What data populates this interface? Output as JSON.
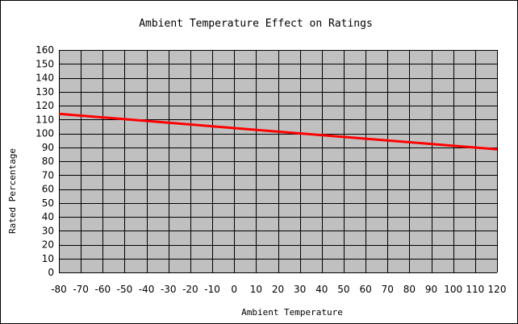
{
  "chart_data": {
    "type": "line",
    "title": "Ambient Temperature Effect on Ratings",
    "xlabel": "Ambient Temperature",
    "ylabel": "Rated Percentage",
    "xlim": [
      -80,
      120
    ],
    "ylim": [
      0,
      160
    ],
    "x_ticks": [
      -80,
      -70,
      -60,
      -50,
      -40,
      -30,
      -20,
      -10,
      0,
      10,
      20,
      30,
      40,
      50,
      60,
      70,
      80,
      90,
      100,
      110,
      120
    ],
    "y_ticks": [
      0,
      10,
      20,
      30,
      40,
      50,
      60,
      70,
      80,
      90,
      100,
      110,
      120,
      130,
      140,
      150,
      160
    ],
    "x_tick_labels": [
      "-80",
      "-70",
      "-60",
      "-50",
      "-40",
      "-30",
      "-20",
      "-10",
      "0",
      "10",
      "20",
      "30",
      "40",
      "50",
      "60",
      "70",
      "80",
      "90",
      "100",
      "110",
      "120"
    ],
    "y_tick_labels": [
      "0",
      "10",
      "20",
      "30",
      "40",
      "50",
      "60",
      "70",
      "80",
      "90",
      "100",
      "110",
      "120",
      "130",
      "140",
      "150",
      "160"
    ],
    "grid": true,
    "series": [
      {
        "x": [
          -80,
          120
        ],
        "y": [
          114,
          88.5
        ]
      }
    ],
    "colors": {
      "plot_background": "#c0c0c0",
      "grid": "#000000",
      "line": "#ff0000"
    }
  }
}
